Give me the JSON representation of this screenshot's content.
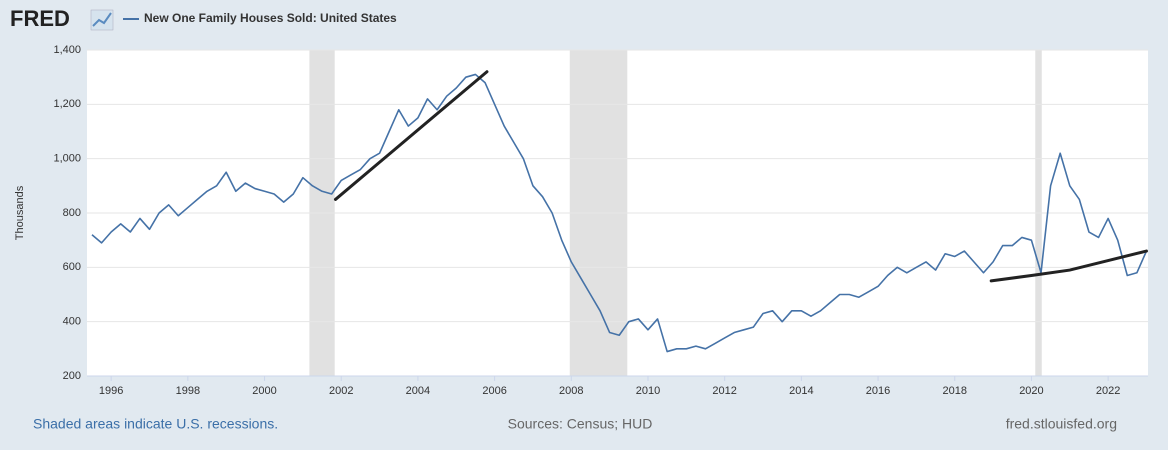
{
  "chart_data": {
    "type": "line",
    "logo": "FRED",
    "y_label": "Thousands",
    "footer_left": "Shaded areas indicate U.S. recessions.",
    "footer_center": "Sources: Census; HUD",
    "footer_right": "fred.stlouisfed.org",
    "xlim": [
      1995.37,
      2023.04
    ],
    "xticks": [
      1996,
      1998,
      2000,
      2002,
      2004,
      2006,
      2008,
      2010,
      2012,
      2014,
      2016,
      2018,
      2020,
      2022
    ],
    "ylim": [
      200,
      1400
    ],
    "yticks": [
      200,
      400,
      600,
      800,
      {
        "value": 1000,
        "label": "1,000"
      },
      {
        "value": 1200,
        "label": "1,200"
      },
      {
        "value": 1400,
        "label": "1,400"
      }
    ],
    "grid": true,
    "recessions": [
      {
        "start": 2001.17,
        "end": 2001.83
      },
      {
        "start": 2007.96,
        "end": 2009.46
      },
      {
        "start": 2020.1,
        "end": 2020.27
      }
    ],
    "recession_color": "#e1e1e1",
    "x": [
      1995.5,
      1995.75,
      1996,
      1996.25,
      1996.5,
      1996.75,
      1997,
      1997.25,
      1997.5,
      1997.75,
      1998,
      1998.25,
      1998.5,
      1998.75,
      1999,
      1999.25,
      1999.5,
      1999.75,
      2000,
      2000.25,
      2000.5,
      2000.75,
      2001,
      2001.25,
      2001.5,
      2001.75,
      2002,
      2002.25,
      2002.5,
      2002.75,
      2003,
      2003.25,
      2003.5,
      2003.75,
      2004,
      2004.25,
      2004.5,
      2004.75,
      2005,
      2005.25,
      2005.5,
      2005.75,
      2006,
      2006.25,
      2006.5,
      2006.75,
      2007,
      2007.25,
      2007.5,
      2007.75,
      2008,
      2008.25,
      2008.5,
      2008.75,
      2009,
      2009.25,
      2009.5,
      2009.75,
      2010,
      2010.25,
      2010.5,
      2010.75,
      2011,
      2011.25,
      2011.5,
      2011.75,
      2012,
      2012.25,
      2012.5,
      2012.75,
      2013,
      2013.25,
      2013.5,
      2013.75,
      2014,
      2014.25,
      2014.5,
      2014.75,
      2015,
      2015.25,
      2015.5,
      2015.75,
      2016,
      2016.25,
      2016.5,
      2016.75,
      2017,
      2017.25,
      2017.5,
      2017.75,
      2018,
      2018.25,
      2018.5,
      2018.75,
      2019,
      2019.25,
      2019.5,
      2019.75,
      2020,
      2020.25,
      2020.5,
      2020.75,
      2021,
      2021.25,
      2021.5,
      2021.75,
      2022,
      2022.25,
      2022.5,
      2022.75,
      2023
    ],
    "series": [
      {
        "name": "New One Family Houses Sold: United States",
        "color": "#4572a7",
        "values": [
          720,
          690,
          730,
          760,
          730,
          780,
          740,
          800,
          830,
          790,
          820,
          850,
          880,
          900,
          950,
          880,
          910,
          890,
          880,
          870,
          840,
          870,
          930,
          900,
          880,
          870,
          920,
          940,
          960,
          1000,
          1020,
          1100,
          1180,
          1120,
          1150,
          1220,
          1180,
          1230,
          1260,
          1300,
          1310,
          1280,
          1200,
          1120,
          1060,
          1000,
          900,
          860,
          800,
          700,
          620,
          560,
          500,
          440,
          360,
          350,
          400,
          410,
          370,
          410,
          290,
          300,
          300,
          310,
          300,
          320,
          340,
          360,
          370,
          380,
          430,
          440,
          400,
          440,
          440,
          420,
          440,
          470,
          500,
          500,
          490,
          510,
          530,
          570,
          600,
          580,
          600,
          620,
          590,
          650,
          640,
          660,
          620,
          580,
          620,
          680,
          680,
          710,
          700,
          580,
          900,
          1020,
          900,
          850,
          730,
          710,
          780,
          700,
          570,
          580,
          660
        ]
      }
    ],
    "trend_lines": [
      {
        "color": "#222222",
        "x": [
          2001.85,
          2005.8
        ],
        "y": [
          850,
          1320
        ]
      },
      {
        "color": "#222222",
        "x": [
          2018.95,
          2020,
          2021,
          2022,
          2023
        ],
        "y": [
          550,
          570,
          590,
          625,
          660
        ]
      }
    ]
  }
}
